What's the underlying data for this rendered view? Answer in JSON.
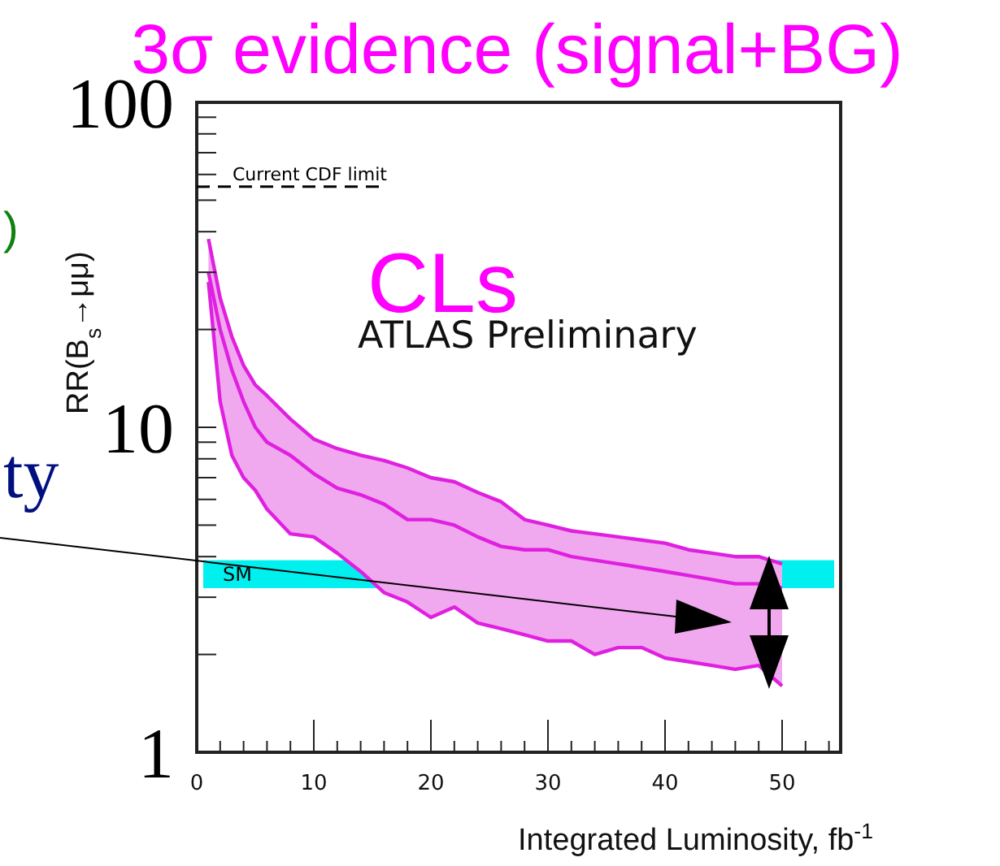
{
  "chart_data": {
    "type": "line",
    "title": "3σ evidence (signal+BG)",
    "xlabel": "Integrated Luminosity, fb$^{-1}$",
    "ylabel": "RR(B$_{s}$→μμ)",
    "log": "y",
    "grid": false,
    "marker": "none",
    "line_style": "solid",
    "xlim": [
      0,
      55
    ],
    "ylim": [
      1,
      100
    ],
    "xticks": [
      0,
      {
        "value": 2,
        "label": null
      },
      {
        "value": 4,
        "label": null
      },
      {
        "value": 6,
        "label": null
      },
      {
        "value": 8,
        "label": null
      },
      10,
      {
        "value": 12,
        "label": null
      },
      {
        "value": 14,
        "label": null
      },
      {
        "value": 16,
        "label": null
      },
      {
        "value": 18,
        "label": null
      },
      20,
      {
        "value": 22,
        "label": null
      },
      {
        "value": 24,
        "label": null
      },
      {
        "value": 26,
        "label": null
      },
      {
        "value": 28,
        "label": null
      },
      30,
      {
        "value": 32,
        "label": null
      },
      {
        "value": 34,
        "label": null
      },
      {
        "value": 36,
        "label": null
      },
      {
        "value": 38,
        "label": null
      },
      40,
      {
        "value": 42,
        "label": null
      },
      {
        "value": 44,
        "label": null
      },
      {
        "value": 46,
        "label": null
      },
      {
        "value": 48,
        "label": null
      },
      50,
      {
        "value": 52,
        "label": null
      },
      {
        "value": 54,
        "label": null
      }
    ],
    "yticks": [
      1,
      {
        "value": 2,
        "label": null
      },
      {
        "value": 3,
        "label": null
      },
      {
        "value": 4,
        "label": null
      },
      {
        "value": 5,
        "label": null
      },
      {
        "value": 6,
        "label": null
      },
      {
        "value": 7,
        "label": null
      },
      {
        "value": 8,
        "label": null
      },
      {
        "value": 9,
        "label": null
      },
      10,
      {
        "value": 20,
        "label": null
      },
      {
        "value": 30,
        "label": null
      },
      {
        "value": 40,
        "label": null
      },
      {
        "value": 50,
        "label": null
      },
      {
        "value": 60,
        "label": null
      },
      {
        "value": 70,
        "label": null
      },
      {
        "value": 80,
        "label": null
      },
      {
        "value": 90,
        "label": null
      },
      100
    ],
    "x": [
      1,
      2,
      3,
      4,
      5,
      6,
      8,
      10,
      12,
      14,
      16,
      18,
      20,
      22,
      24,
      26,
      28,
      30,
      32,
      34,
      36,
      38,
      40,
      42,
      44,
      46,
      48,
      50
    ],
    "series": [
      {
        "color": "#e020e0",
        "values": [
          38,
          25,
          19,
          15.5,
          13.5,
          12.5,
          10.6,
          9.2,
          8.6,
          8.2,
          7.9,
          7.5,
          7.0,
          6.8,
          6.3,
          5.9,
          5.2,
          5.0,
          4.8,
          4.7,
          4.6,
          4.5,
          4.4,
          4.2,
          4.1,
          4.0,
          4.0,
          3.8
        ]
      },
      {
        "color": "#e020e0",
        "values": [
          30,
          20,
          15,
          12,
          10,
          9,
          8.2,
          7.2,
          6.5,
          6.2,
          5.8,
          5.2,
          5.2,
          5.0,
          4.6,
          4.3,
          4.2,
          4.2,
          4.0,
          3.9,
          3.8,
          3.7,
          3.6,
          3.5,
          3.4,
          3.3,
          3.3,
          3.2
        ],
        "lower": [
          28,
          12,
          8.2,
          7.0,
          6.4,
          5.6,
          4.7,
          4.6,
          4.1,
          3.6,
          3.1,
          2.9,
          2.6,
          2.8,
          2.5,
          2.4,
          2.3,
          2.2,
          2.2,
          2.0,
          2.1,
          2.1,
          1.95,
          1.9,
          1.85,
          1.8,
          1.85,
          1.6
        ],
        "upper": [
          38,
          25,
          19,
          15.5,
          13.5,
          12.5,
          10.6,
          9.2,
          8.6,
          8.2,
          7.9,
          7.5,
          7.0,
          6.8,
          6.3,
          5.9,
          5.2,
          5.0,
          4.8,
          4.7,
          4.6,
          4.5,
          4.4,
          4.2,
          4.1,
          4.0,
          4.0,
          3.8
        ]
      },
      {
        "color": "#e020e0",
        "values": [
          28,
          12,
          8.2,
          7.0,
          6.4,
          5.6,
          4.7,
          4.6,
          4.1,
          3.6,
          3.1,
          2.9,
          2.6,
          2.8,
          2.5,
          2.4,
          2.3,
          2.2,
          2.2,
          2.0,
          2.1,
          2.1,
          1.95,
          1.9,
          1.85,
          1.8,
          1.85,
          1.6
        ]
      }
    ],
    "ref_lines": [
      {
        "axis": "y",
        "value": 55,
        "label": "Current CDF limit",
        "line_style": "dashed",
        "color": "#000000"
      }
    ],
    "bands": [
      {
        "axis": "y",
        "from": 3.2,
        "to": 3.9,
        "label": "SM",
        "color": "#00f0f0"
      }
    ],
    "annotations": [
      "CLs",
      "ATLAS Preliminary",
      "ty",
      ")"
    ]
  }
}
